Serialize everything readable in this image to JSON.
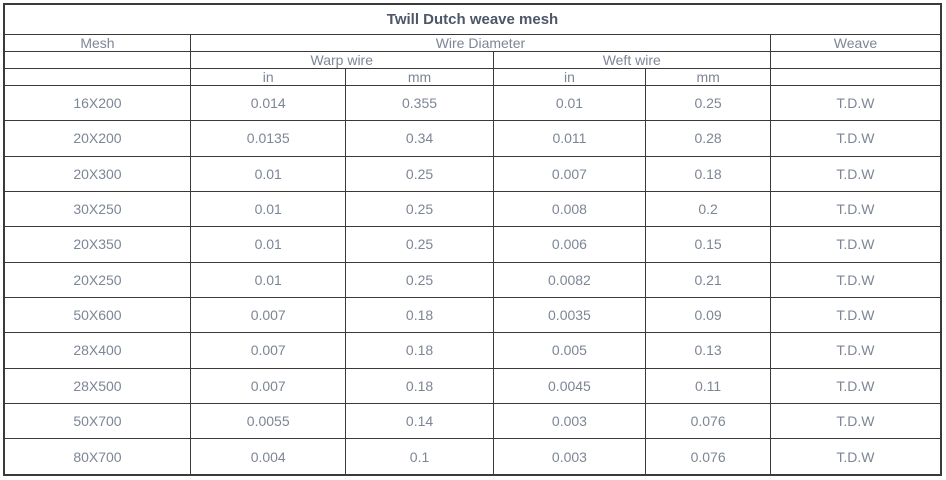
{
  "table": {
    "title": "Twill Dutch weave mesh",
    "headers": {
      "mesh": "Mesh",
      "wire_diameter": "Wire Diameter",
      "weave": "Weave",
      "warp_wire": "Warp wire",
      "weft_wire": "Weft wire",
      "warp_in": "in",
      "warp_mm": "mm",
      "weft_in": "in",
      "weft_mm": "mm"
    },
    "row_keys": [
      "mesh",
      "warp_in",
      "warp_mm",
      "weft_in",
      "weft_mm",
      "weave"
    ],
    "rows": [
      {
        "mesh": "16X200",
        "warp_in": "0.014",
        "warp_mm": "0.355",
        "weft_in": "0.01",
        "weft_mm": "0.25",
        "weave": "T.D.W"
      },
      {
        "mesh": "20X200",
        "warp_in": "0.0135",
        "warp_mm": "0.34",
        "weft_in": "0.011",
        "weft_mm": "0.28",
        "weave": "T.D.W"
      },
      {
        "mesh": "20X300",
        "warp_in": "0.01",
        "warp_mm": "0.25",
        "weft_in": "0.007",
        "weft_mm": "0.18",
        "weave": "T.D.W"
      },
      {
        "mesh": "30X250",
        "warp_in": "0.01",
        "warp_mm": "0.25",
        "weft_in": "0.008",
        "weft_mm": "0.2",
        "weave": "T.D.W"
      },
      {
        "mesh": "20X350",
        "warp_in": "0.01",
        "warp_mm": "0.25",
        "weft_in": "0.006",
        "weft_mm": "0.15",
        "weave": "T.D.W"
      },
      {
        "mesh": "20X250",
        "warp_in": "0.01",
        "warp_mm": "0.25",
        "weft_in": "0.0082",
        "weft_mm": "0.21",
        "weave": "T.D.W"
      },
      {
        "mesh": "50X600",
        "warp_in": "0.007",
        "warp_mm": "0.18",
        "weft_in": "0.0035",
        "weft_mm": "0.09",
        "weave": "T.D.W"
      },
      {
        "mesh": "28X400",
        "warp_in": "0.007",
        "warp_mm": "0.18",
        "weft_in": "0.005",
        "weft_mm": "0.13",
        "weave": "T.D.W"
      },
      {
        "mesh": "28X500",
        "warp_in": "0.007",
        "warp_mm": "0.18",
        "weft_in": "0.0045",
        "weft_mm": "0.11",
        "weave": "T.D.W"
      },
      {
        "mesh": "50X700",
        "warp_in": "0.0055",
        "warp_mm": "0.14",
        "weft_in": "0.003",
        "weft_mm": "0.076",
        "weave": "T.D.W"
      },
      {
        "mesh": "80X700",
        "warp_in": "0.004",
        "warp_mm": "0.1",
        "weft_in": "0.003",
        "weft_mm": "0.076",
        "weave": "T.D.W"
      }
    ]
  },
  "chart_data": {
    "type": "table",
    "title": "Twill Dutch weave mesh",
    "columns": [
      "Mesh",
      "Wire Diameter Warp wire in",
      "Wire Diameter Warp wire mm",
      "Wire Diameter Weft wire in",
      "Wire Diameter Weft wire mm",
      "Weave"
    ],
    "rows": [
      [
        "16X200",
        0.014,
        0.355,
        0.01,
        0.25,
        "T.D.W"
      ],
      [
        "20X200",
        0.0135,
        0.34,
        0.011,
        0.28,
        "T.D.W"
      ],
      [
        "20X300",
        0.01,
        0.25,
        0.007,
        0.18,
        "T.D.W"
      ],
      [
        "30X250",
        0.01,
        0.25,
        0.008,
        0.2,
        "T.D.W"
      ],
      [
        "20X350",
        0.01,
        0.25,
        0.006,
        0.15,
        "T.D.W"
      ],
      [
        "20X250",
        0.01,
        0.25,
        0.0082,
        0.21,
        "T.D.W"
      ],
      [
        "50X600",
        0.007,
        0.18,
        0.0035,
        0.09,
        "T.D.W"
      ],
      [
        "28X400",
        0.007,
        0.18,
        0.005,
        0.13,
        "T.D.W"
      ],
      [
        "28X500",
        0.007,
        0.18,
        0.0045,
        0.11,
        "T.D.W"
      ],
      [
        "50X700",
        0.0055,
        0.14,
        0.003,
        0.076,
        "T.D.W"
      ],
      [
        "80X700",
        0.004,
        0.1,
        0.003,
        0.076,
        "T.D.W"
      ]
    ]
  },
  "colors": {
    "border": "#3a3a3a",
    "title_text": "#4e5768",
    "cell_text": "#7d8695",
    "background": "#ffffff"
  }
}
